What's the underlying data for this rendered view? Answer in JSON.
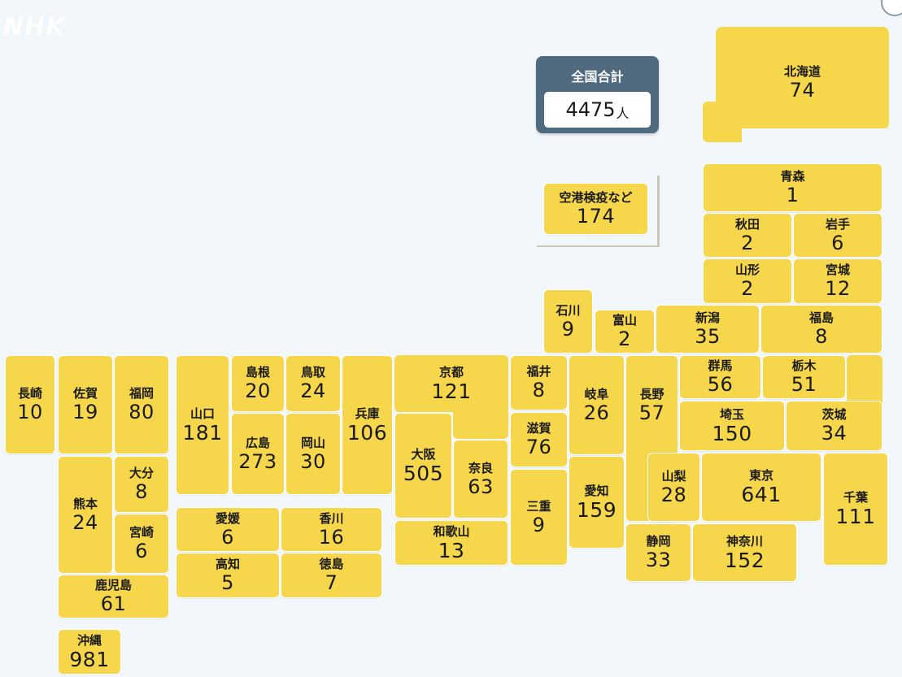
{
  "brand": "NHK",
  "summary": {
    "label": "全国合計",
    "value": "4475",
    "unit": "人"
  },
  "airport": {
    "name": "空港検疫など",
    "count": "174"
  },
  "colors": {
    "tile": "#f6d64b",
    "total_bg": "#506b80",
    "background": "#f2f7fc"
  },
  "prefectures": {
    "hokkaido": {
      "name": "北海道",
      "count": "74"
    },
    "aomori": {
      "name": "青森",
      "count": "1"
    },
    "akita": {
      "name": "秋田",
      "count": "2"
    },
    "iwate": {
      "name": "岩手",
      "count": "6"
    },
    "yamagata": {
      "name": "山形",
      "count": "2"
    },
    "miyagi": {
      "name": "宮城",
      "count": "12"
    },
    "ishikawa": {
      "name": "石川",
      "count": "9"
    },
    "toyama": {
      "name": "富山",
      "count": "2"
    },
    "niigata": {
      "name": "新潟",
      "count": "35"
    },
    "fukushima": {
      "name": "福島",
      "count": "8"
    },
    "nagasaki": {
      "name": "長崎",
      "count": "10"
    },
    "saga": {
      "name": "佐賀",
      "count": "19"
    },
    "fukuoka": {
      "name": "福岡",
      "count": "80"
    },
    "yamaguchi": {
      "name": "山口",
      "count": "181"
    },
    "shimane": {
      "name": "島根",
      "count": "20"
    },
    "tottori": {
      "name": "鳥取",
      "count": "24"
    },
    "hyogo": {
      "name": "兵庫",
      "count": "106"
    },
    "kyoto": {
      "name": "京都",
      "count": "121"
    },
    "fukui": {
      "name": "福井",
      "count": "8"
    },
    "gifu": {
      "name": "岐阜",
      "count": "26"
    },
    "nagano": {
      "name": "長野",
      "count": "57"
    },
    "gunma": {
      "name": "群馬",
      "count": "56"
    },
    "tochigi": {
      "name": "栃木",
      "count": "51"
    },
    "saitama": {
      "name": "埼玉",
      "count": "150"
    },
    "ibaraki": {
      "name": "茨城",
      "count": "34"
    },
    "hiroshima": {
      "name": "広島",
      "count": "273"
    },
    "okayama": {
      "name": "岡山",
      "count": "30"
    },
    "osaka": {
      "name": "大阪",
      "count": "505"
    },
    "nara": {
      "name": "奈良",
      "count": "63"
    },
    "shiga": {
      "name": "滋賀",
      "count": "76"
    },
    "mie": {
      "name": "三重",
      "count": "9"
    },
    "aichi": {
      "name": "愛知",
      "count": "159"
    },
    "yamanashi": {
      "name": "山梨",
      "count": "28"
    },
    "tokyo": {
      "name": "東京",
      "count": "641"
    },
    "chiba": {
      "name": "千葉",
      "count": "111"
    },
    "shizuoka": {
      "name": "静岡",
      "count": "33"
    },
    "kanagawa": {
      "name": "神奈川",
      "count": "152"
    },
    "wakayama": {
      "name": "和歌山",
      "count": "13"
    },
    "kumamoto": {
      "name": "熊本",
      "count": "24"
    },
    "oita": {
      "name": "大分",
      "count": "8"
    },
    "miyazaki": {
      "name": "宮崎",
      "count": "6"
    },
    "kagoshima": {
      "name": "鹿児島",
      "count": "61"
    },
    "okinawa": {
      "name": "沖縄",
      "count": "981"
    },
    "ehime": {
      "name": "愛媛",
      "count": "6"
    },
    "kagawa": {
      "name": "香川",
      "count": "16"
    },
    "kochi": {
      "name": "高知",
      "count": "5"
    },
    "tokushima": {
      "name": "徳島",
      "count": "7"
    }
  }
}
